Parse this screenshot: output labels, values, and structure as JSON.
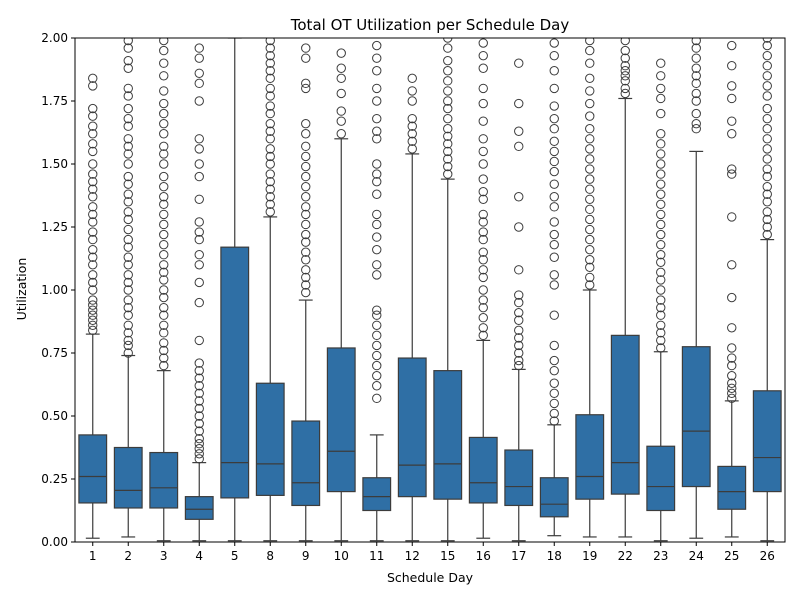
{
  "chart_data": {
    "type": "box",
    "title": "Total OT Utilization per Schedule Day",
    "xlabel": "Schedule Day",
    "ylabel": "Utilization",
    "ylim": [
      0,
      2.0
    ],
    "y_ticks": [
      "0.00",
      "0.25",
      "0.50",
      "0.75",
      "1.00",
      "1.25",
      "1.50",
      "1.75",
      "2.00"
    ],
    "colors": {
      "box": "#2f6fa5",
      "edge": "#3c3c3c",
      "outlier": "#3c3c3c"
    },
    "categories": [
      "1",
      "2",
      "3",
      "4",
      "5",
      "8",
      "9",
      "10",
      "11",
      "12",
      "15",
      "16",
      "17",
      "18",
      "19",
      "22",
      "23",
      "24",
      "25",
      "26"
    ],
    "boxes": [
      {
        "whislo": 0.015,
        "q1": 0.155,
        "med": 0.26,
        "q3": 0.425,
        "whishi": 0.825,
        "fliers": [
          0.84,
          0.86,
          0.88,
          0.9,
          0.92,
          0.94,
          0.96,
          1.0,
          1.03,
          1.06,
          1.1,
          1.13,
          1.16,
          1.2,
          1.23,
          1.27,
          1.3,
          1.33,
          1.37,
          1.4,
          1.43,
          1.46,
          1.5,
          1.55,
          1.58,
          1.62,
          1.65,
          1.69,
          1.72,
          1.81,
          1.84
        ]
      },
      {
        "whislo": 0.02,
        "q1": 0.135,
        "med": 0.205,
        "q3": 0.375,
        "whishi": 0.74,
        "fliers": [
          0.75,
          0.78,
          0.8,
          0.83,
          0.86,
          0.9,
          0.93,
          0.96,
          1.0,
          1.03,
          1.06,
          1.1,
          1.13,
          1.17,
          1.2,
          1.24,
          1.28,
          1.31,
          1.35,
          1.38,
          1.42,
          1.45,
          1.5,
          1.54,
          1.57,
          1.6,
          1.65,
          1.68,
          1.72,
          1.77,
          1.8,
          1.88,
          1.91,
          1.96,
          1.99
        ]
      },
      {
        "whislo": 0.005,
        "q1": 0.135,
        "med": 0.215,
        "q3": 0.355,
        "whishi": 0.68,
        "fliers": [
          0.7,
          0.73,
          0.76,
          0.79,
          0.83,
          0.86,
          0.9,
          0.93,
          0.97,
          1.0,
          1.04,
          1.07,
          1.1,
          1.14,
          1.18,
          1.22,
          1.26,
          1.3,
          1.34,
          1.37,
          1.41,
          1.45,
          1.5,
          1.54,
          1.57,
          1.62,
          1.66,
          1.7,
          1.74,
          1.79,
          1.85,
          1.9,
          1.95,
          1.99
        ]
      },
      {
        "whislo": 0.005,
        "q1": 0.09,
        "med": 0.13,
        "q3": 0.18,
        "whishi": 0.315,
        "fliers": [
          0.33,
          0.35,
          0.37,
          0.39,
          0.41,
          0.44,
          0.47,
          0.5,
          0.53,
          0.56,
          0.59,
          0.62,
          0.65,
          0.68,
          0.71,
          0.8,
          0.95,
          1.03,
          1.1,
          1.14,
          1.2,
          1.23,
          1.27,
          1.36,
          1.45,
          1.5,
          1.56,
          1.6,
          1.75,
          1.82,
          1.86,
          1.92,
          1.96
        ]
      },
      {
        "whislo": 0.005,
        "q1": 0.175,
        "med": 0.315,
        "q3": 1.17,
        "whishi": 2.0,
        "fliers": []
      },
      {
        "whislo": 0.005,
        "q1": 0.185,
        "med": 0.31,
        "q3": 0.63,
        "whishi": 1.29,
        "fliers": [
          1.31,
          1.34,
          1.37,
          1.4,
          1.43,
          1.46,
          1.5,
          1.53,
          1.56,
          1.6,
          1.63,
          1.66,
          1.7,
          1.73,
          1.77,
          1.8,
          1.84,
          1.87,
          1.9,
          1.93,
          1.96,
          1.99
        ]
      },
      {
        "whislo": 0.005,
        "q1": 0.145,
        "med": 0.235,
        "q3": 0.48,
        "whishi": 0.96,
        "fliers": [
          0.99,
          1.02,
          1.05,
          1.08,
          1.12,
          1.15,
          1.19,
          1.22,
          1.26,
          1.3,
          1.33,
          1.37,
          1.41,
          1.45,
          1.49,
          1.53,
          1.57,
          1.62,
          1.66,
          1.8,
          1.82,
          1.92,
          1.96
        ]
      },
      {
        "whislo": 0.005,
        "q1": 0.2,
        "med": 0.36,
        "q3": 0.77,
        "whishi": 1.6,
        "fliers": [
          1.62,
          1.67,
          1.71,
          1.78,
          1.84,
          1.88,
          1.94
        ]
      },
      {
        "whislo": 0.005,
        "q1": 0.125,
        "med": 0.18,
        "q3": 0.255,
        "whishi": 0.425,
        "fliers": [
          0.57,
          0.62,
          0.66,
          0.7,
          0.74,
          0.78,
          0.82,
          0.86,
          0.9,
          0.92,
          1.06,
          1.1,
          1.16,
          1.21,
          1.26,
          1.3,
          1.38,
          1.43,
          1.46,
          1.5,
          1.6,
          1.63,
          1.68,
          1.75,
          1.8,
          1.87,
          1.92,
          1.97
        ]
      },
      {
        "whislo": 0.005,
        "q1": 0.18,
        "med": 0.305,
        "q3": 0.73,
        "whishi": 1.54,
        "fliers": [
          1.56,
          1.59,
          1.62,
          1.65,
          1.68,
          1.75,
          1.79,
          1.84
        ]
      },
      {
        "whislo": 0.005,
        "q1": 0.17,
        "med": 0.31,
        "q3": 0.68,
        "whishi": 1.44,
        "fliers": [
          1.46,
          1.49,
          1.52,
          1.55,
          1.58,
          1.61,
          1.64,
          1.68,
          1.72,
          1.75,
          1.79,
          1.83,
          1.87,
          1.91,
          1.96,
          2.0
        ]
      },
      {
        "whislo": 0.015,
        "q1": 0.155,
        "med": 0.235,
        "q3": 0.415,
        "whishi": 0.8,
        "fliers": [
          0.82,
          0.85,
          0.89,
          0.93,
          0.96,
          1.0,
          1.05,
          1.08,
          1.12,
          1.15,
          1.2,
          1.23,
          1.27,
          1.3,
          1.36,
          1.39,
          1.44,
          1.5,
          1.55,
          1.6,
          1.67,
          1.74,
          1.8,
          1.88,
          1.93,
          1.98
        ]
      },
      {
        "whislo": 0.005,
        "q1": 0.145,
        "med": 0.22,
        "q3": 0.365,
        "whishi": 0.685,
        "fliers": [
          0.7,
          0.72,
          0.75,
          0.78,
          0.81,
          0.84,
          0.88,
          0.91,
          0.95,
          0.98,
          1.08,
          1.25,
          1.37,
          1.57,
          1.63,
          1.74,
          1.9
        ]
      },
      {
        "whislo": 0.025,
        "q1": 0.1,
        "med": 0.15,
        "q3": 0.255,
        "whishi": 0.465,
        "fliers": [
          0.48,
          0.51,
          0.55,
          0.59,
          0.63,
          0.68,
          0.72,
          0.78,
          0.9,
          1.02,
          1.06,
          1.13,
          1.18,
          1.22,
          1.27,
          1.33,
          1.37,
          1.42,
          1.47,
          1.51,
          1.55,
          1.59,
          1.64,
          1.68,
          1.73,
          1.8,
          1.87,
          1.93,
          1.98
        ]
      },
      {
        "whislo": 0.02,
        "q1": 0.17,
        "med": 0.26,
        "q3": 0.505,
        "whishi": 1.0,
        "fliers": [
          1.02,
          1.05,
          1.09,
          1.12,
          1.16,
          1.2,
          1.24,
          1.28,
          1.32,
          1.36,
          1.4,
          1.44,
          1.48,
          1.52,
          1.56,
          1.6,
          1.64,
          1.69,
          1.74,
          1.79,
          1.84,
          1.9,
          1.95,
          1.99
        ]
      },
      {
        "whislo": 0.02,
        "q1": 0.19,
        "med": 0.315,
        "q3": 0.82,
        "whishi": 1.76,
        "fliers": [
          1.78,
          1.8,
          1.83,
          1.85,
          1.87,
          1.89,
          1.92,
          1.95,
          1.99
        ]
      },
      {
        "whislo": 0.005,
        "q1": 0.125,
        "med": 0.22,
        "q3": 0.38,
        "whishi": 0.755,
        "fliers": [
          0.77,
          0.8,
          0.83,
          0.86,
          0.9,
          0.93,
          0.96,
          1.0,
          1.04,
          1.07,
          1.11,
          1.14,
          1.18,
          1.22,
          1.26,
          1.3,
          1.34,
          1.38,
          1.42,
          1.46,
          1.5,
          1.54,
          1.58,
          1.62,
          1.7,
          1.76,
          1.8,
          1.85,
          1.9
        ]
      },
      {
        "whislo": 0.015,
        "q1": 0.22,
        "med": 0.44,
        "q3": 0.775,
        "whishi": 1.55,
        "fliers": [
          1.64,
          1.66,
          1.7,
          1.75,
          1.78,
          1.82,
          1.85,
          1.88,
          1.92,
          1.96,
          1.99
        ]
      },
      {
        "whislo": 0.02,
        "q1": 0.13,
        "med": 0.2,
        "q3": 0.3,
        "whishi": 0.56,
        "fliers": [
          0.57,
          0.59,
          0.61,
          0.63,
          0.66,
          0.7,
          0.73,
          0.77,
          0.85,
          0.97,
          1.1,
          1.29,
          1.46,
          1.48,
          1.62,
          1.67,
          1.76,
          1.81,
          1.89,
          1.97
        ]
      },
      {
        "whislo": 0.005,
        "q1": 0.2,
        "med": 0.335,
        "q3": 0.6,
        "whishi": 1.2,
        "fliers": [
          1.22,
          1.25,
          1.28,
          1.31,
          1.35,
          1.38,
          1.41,
          1.45,
          1.48,
          1.52,
          1.56,
          1.6,
          1.64,
          1.68,
          1.72,
          1.77,
          1.81,
          1.85,
          1.89,
          1.93,
          1.97,
          2.0
        ]
      }
    ]
  }
}
